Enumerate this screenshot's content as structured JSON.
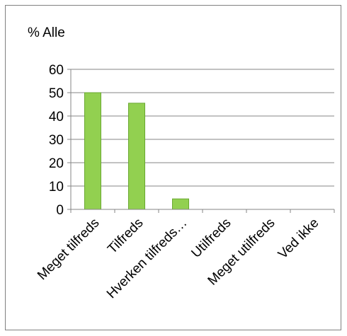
{
  "chart_data": {
    "type": "bar",
    "title": "% Alle",
    "categories": [
      "Meget tilfreds",
      "Tilfreds",
      "Hverken tilfreds…",
      "Utilfreds",
      "Meget utilfreds",
      "Ved ikke"
    ],
    "values": [
      50,
      45.5,
      4.5,
      0,
      0,
      0
    ],
    "ylim": [
      0,
      60
    ],
    "yticks": [
      "0",
      "10",
      "20",
      "30",
      "40",
      "50",
      "60"
    ],
    "grid": true,
    "legend": "none",
    "colors": {
      "bar_fill": "#92d050",
      "bar_stroke": "#6aa832",
      "grid": "#868686",
      "axis": "#868686"
    }
  }
}
